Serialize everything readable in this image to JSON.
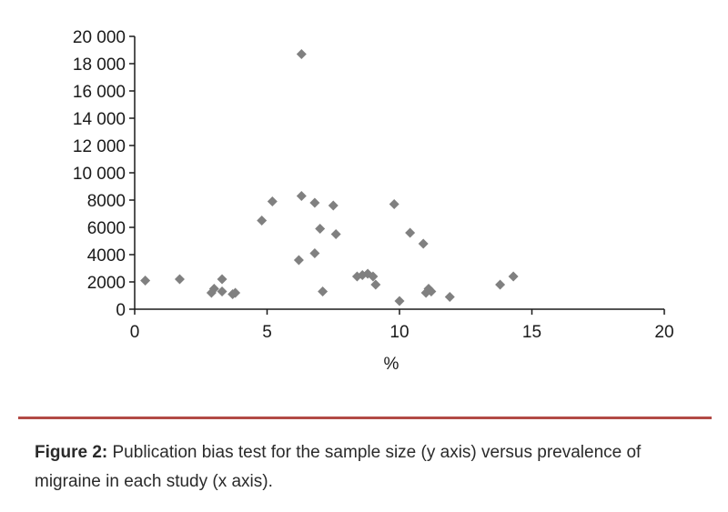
{
  "chart_data": {
    "type": "scatter",
    "title": "",
    "xlabel": "%",
    "ylabel": "",
    "xlim": [
      0,
      20
    ],
    "ylim": [
      0,
      20000
    ],
    "x_ticks": [
      0,
      5,
      10,
      15,
      20
    ],
    "x_tick_labels": [
      "0",
      "5",
      "10",
      "15",
      "20"
    ],
    "y_ticks": [
      0,
      2000,
      4000,
      6000,
      8000,
      10000,
      12000,
      14000,
      16000,
      18000,
      20000
    ],
    "y_tick_labels": [
      "0",
      "2000",
      "4000",
      "6000",
      "8000",
      "10 000",
      "12 000",
      "14 000",
      "16 000",
      "18 000",
      "20 000"
    ],
    "marker": "diamond",
    "marker_color": "#808080",
    "grid": false,
    "points": [
      {
        "x": 0.4,
        "y": 2100
      },
      {
        "x": 1.7,
        "y": 2200
      },
      {
        "x": 2.9,
        "y": 1200
      },
      {
        "x": 3.0,
        "y": 1500
      },
      {
        "x": 3.3,
        "y": 2200
      },
      {
        "x": 3.3,
        "y": 1300
      },
      {
        "x": 3.7,
        "y": 1100
      },
      {
        "x": 3.8,
        "y": 1200
      },
      {
        "x": 4.8,
        "y": 6500
      },
      {
        "x": 5.2,
        "y": 7900
      },
      {
        "x": 6.2,
        "y": 3600
      },
      {
        "x": 6.3,
        "y": 8300
      },
      {
        "x": 6.3,
        "y": 18700
      },
      {
        "x": 6.8,
        "y": 7800
      },
      {
        "x": 6.8,
        "y": 4100
      },
      {
        "x": 7.0,
        "y": 5900
      },
      {
        "x": 7.1,
        "y": 1300
      },
      {
        "x": 7.5,
        "y": 7600
      },
      {
        "x": 7.6,
        "y": 5500
      },
      {
        "x": 8.4,
        "y": 2400
      },
      {
        "x": 8.6,
        "y": 2500
      },
      {
        "x": 8.8,
        "y": 2600
      },
      {
        "x": 9.0,
        "y": 2400
      },
      {
        "x": 9.1,
        "y": 1800
      },
      {
        "x": 9.8,
        "y": 7700
      },
      {
        "x": 10.0,
        "y": 600
      },
      {
        "x": 10.4,
        "y": 5600
      },
      {
        "x": 10.9,
        "y": 4800
      },
      {
        "x": 11.0,
        "y": 1200
      },
      {
        "x": 11.1,
        "y": 1500
      },
      {
        "x": 11.2,
        "y": 1300
      },
      {
        "x": 11.9,
        "y": 900
      },
      {
        "x": 13.8,
        "y": 1800
      },
      {
        "x": 14.3,
        "y": 2400
      }
    ]
  },
  "caption": {
    "label": "Figure 2:",
    "text": " Publication  bias test for the sample size (y axis) versus prevalence of migraine in each study (x axis)."
  },
  "colors": {
    "rule": "#b24a46",
    "marker": "#808080",
    "axis": "#1a1a1a"
  }
}
